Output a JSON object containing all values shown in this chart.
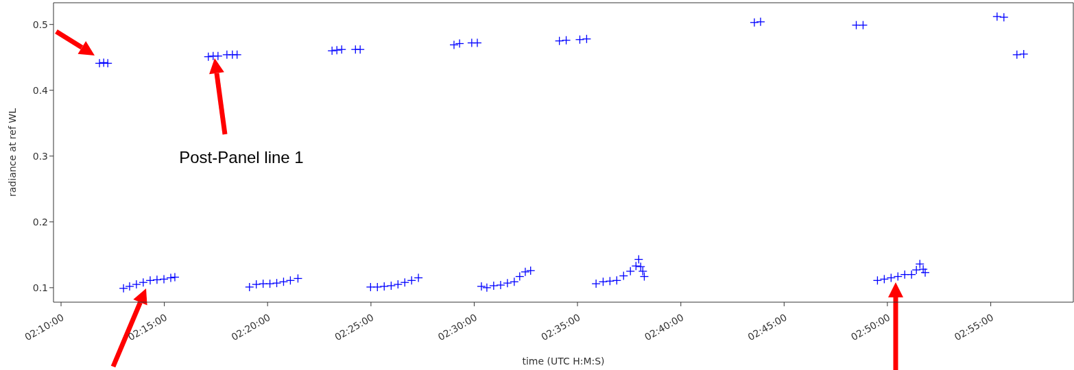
{
  "chart_data": {
    "type": "scatter",
    "xlabel": "time (UTC H:M:S)",
    "ylabel": "radiance at ref WL",
    "annotations": [
      "Post-Panel line 1"
    ],
    "x": [
      2.1977,
      2.2011,
      2.2044,
      2.2171,
      2.222,
      2.2275,
      2.233,
      2.2386,
      2.2441,
      2.2497,
      2.2552,
      2.2585,
      2.2855,
      2.2894,
      2.2933,
      2.3005,
      2.3049,
      2.3087,
      2.3187,
      2.3242,
      2.3297,
      2.3352,
      2.3407,
      2.3462,
      2.3517,
      2.3578,
      2.3853,
      2.3892,
      2.3931,
      2.4042,
      2.408,
      2.4164,
      2.4219,
      2.4274,
      2.433,
      2.4385,
      2.444,
      2.4495,
      2.455,
      2.4837,
      2.4882,
      2.498,
      2.5025,
      2.5058,
      2.5102,
      2.5157,
      2.5213,
      2.5268,
      2.5323,
      2.5367,
      2.5412,
      2.5455,
      2.5687,
      2.5742,
      2.5852,
      2.5907,
      2.5983,
      2.604,
      2.6095,
      2.615,
      2.6205,
      2.626,
      2.6305,
      2.6327,
      2.6343,
      2.636,
      2.6372,
      2.726,
      2.731,
      2.8082,
      2.8137,
      2.8253,
      2.8308,
      2.8363,
      2.8418,
      2.8473,
      2.8528,
      2.8567,
      2.8595,
      2.8622,
      2.8638,
      2.9218,
      2.9273,
      2.9378,
      2.9433
    ],
    "series": [
      {
        "color": "#0000ff",
        "values": [
          0.441,
          0.442,
          0.441,
          0.099,
          0.102,
          0.105,
          0.108,
          0.111,
          0.112,
          0.113,
          0.115,
          0.116,
          0.451,
          0.452,
          0.452,
          0.454,
          0.454,
          0.454,
          0.101,
          0.105,
          0.106,
          0.106,
          0.107,
          0.109,
          0.111,
          0.114,
          0.46,
          0.461,
          0.462,
          0.462,
          0.462,
          0.101,
          0.101,
          0.102,
          0.103,
          0.105,
          0.108,
          0.111,
          0.115,
          0.469,
          0.471,
          0.472,
          0.472,
          0.102,
          0.1,
          0.103,
          0.104,
          0.107,
          0.109,
          0.117,
          0.124,
          0.126,
          0.475,
          0.476,
          0.477,
          0.478,
          0.106,
          0.109,
          0.11,
          0.111,
          0.118,
          0.125,
          0.133,
          0.143,
          0.132,
          0.125,
          0.117,
          0.503,
          0.504,
          0.499,
          0.499,
          0.111,
          0.113,
          0.115,
          0.117,
          0.12,
          0.12,
          0.127,
          0.136,
          0.128,
          0.123,
          0.512,
          0.511,
          0.454,
          0.455
        ]
      }
    ],
    "xlim": [
      2.1606,
      2.9833
    ],
    "ylim": [
      0.078,
      0.533
    ],
    "xticks": [
      {
        "value": 2.1667,
        "label": "02:10:00"
      },
      {
        "value": 2.25,
        "label": "02:15:00"
      },
      {
        "value": 2.3333,
        "label": "02:20:00"
      },
      {
        "value": 2.4167,
        "label": "02:25:00"
      },
      {
        "value": 2.5,
        "label": "02:30:00"
      },
      {
        "value": 2.5833,
        "label": "02:35:00"
      },
      {
        "value": 2.6667,
        "label": "02:40:00"
      },
      {
        "value": 2.75,
        "label": "02:45:00"
      },
      {
        "value": 2.8333,
        "label": "02:50:00"
      },
      {
        "value": 2.9167,
        "label": "02:55:00"
      }
    ],
    "yticks": [
      0.1,
      0.2,
      0.3,
      0.4,
      0.5
    ],
    "marker": "cross"
  }
}
